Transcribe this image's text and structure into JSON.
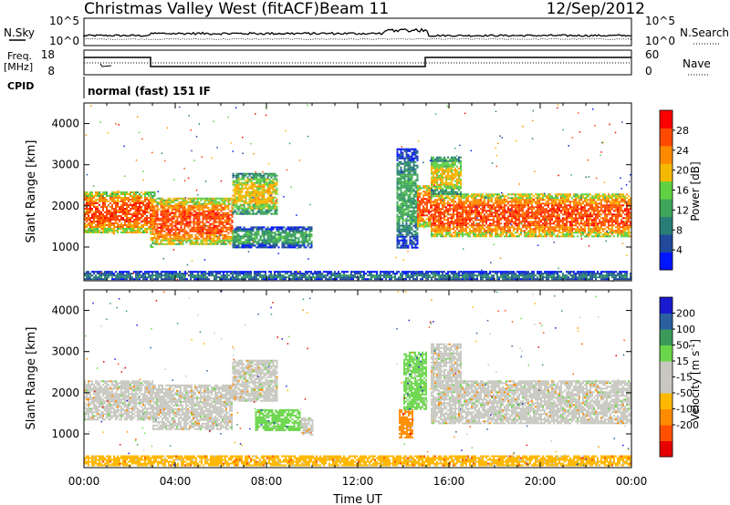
{
  "header": {
    "station": "Christmas Valley West (fitACF)",
    "beam": "Beam 11",
    "date": "12/Sep/2012"
  },
  "noise_panel": {
    "left_label": "N.Sky",
    "right_label": "N.Search",
    "left_ticks": [
      "10^5",
      "10^0"
    ],
    "right_ticks": [
      "10^5",
      "10^0"
    ]
  },
  "freq_panel": {
    "left_label_1": "Freq.",
    "left_label_2": "[MHz]",
    "right_label": "Nave",
    "left_ticks": [
      "18",
      "8"
    ],
    "right_ticks": [
      "60",
      "0"
    ]
  },
  "cpid": {
    "label": "CPID",
    "value": "normal (fast) 151 IF"
  },
  "colors": {
    "power": [
      "#0015ff",
      "#21499c",
      "#287e77",
      "#3ea55a",
      "#60d142",
      "#f5b800",
      "#ff8a00",
      "#ff4a00",
      "#ff0000"
    ],
    "velocity": [
      "#e60000",
      "#ff5000",
      "#ff8c00",
      "#ffb800",
      "#c8c8c0",
      "#c8c8c0",
      "#6ad64a",
      "#3b9a5a",
      "#2a5fa0",
      "#1a1ad0"
    ]
  },
  "chart_data": [
    {
      "type": "heatmap",
      "name": "power",
      "ylabel": "Slant Range [km]",
      "yticks": [
        "1000",
        "2000",
        "3000",
        "4000"
      ],
      "ylim": [
        180,
        4500
      ],
      "colorbar_label": "Power [dB]",
      "colorbar_ticks": [
        "4",
        "8",
        "12",
        "16",
        "20",
        "24",
        "28"
      ],
      "colorbar_range": [
        0,
        32
      ],
      "bands": [
        {
          "t0": 0.0,
          "t1": 2.9,
          "r0": 1350,
          "r1": 2350,
          "level": 7
        },
        {
          "t0": 2.9,
          "t1": 3.1,
          "r0": 1000,
          "r1": 2350,
          "level": 6
        },
        {
          "t0": 3.1,
          "t1": 6.5,
          "r0": 1050,
          "r1": 2200,
          "level": 7
        },
        {
          "t0": 6.5,
          "t1": 8.5,
          "r0": 1800,
          "r1": 2800,
          "level": 5
        },
        {
          "t0": 6.5,
          "t1": 10.0,
          "r0": 1000,
          "r1": 1500,
          "level": 3
        },
        {
          "t0": 13.7,
          "t1": 14.6,
          "r0": 1000,
          "r1": 3400,
          "level": 3
        },
        {
          "t0": 14.6,
          "t1": 15.2,
          "r0": 1500,
          "r1": 2500,
          "level": 7
        },
        {
          "t0": 15.2,
          "t1": 24.0,
          "r0": 1250,
          "r1": 2300,
          "level": 7
        },
        {
          "t0": 15.2,
          "t1": 16.5,
          "r0": 2300,
          "r1": 3200,
          "level": 5
        },
        {
          "t0": 0.0,
          "t1": 24.0,
          "r0": 200,
          "r1": 420,
          "level": 2
        }
      ]
    },
    {
      "type": "heatmap",
      "name": "velocity",
      "ylabel": "Slant Range [km]",
      "xlabel": "Time UT",
      "xticks": [
        "00:00",
        "04:00",
        "08:00",
        "12:00",
        "16:00",
        "20:00",
        "00:00"
      ],
      "xlim": [
        0,
        24
      ],
      "yticks": [
        "1000",
        "2000",
        "3000",
        "4000"
      ],
      "ylim": [
        180,
        4500
      ],
      "colorbar_label": "Velocity [m s",
      "colorbar_unit_exp": "-1",
      "colorbar_ticks": [
        "200",
        "100",
        "50",
        "15",
        "-15",
        "-50",
        "-100",
        "-200"
      ],
      "bands": [
        {
          "t0": 0.0,
          "t1": 3.0,
          "r0": 1350,
          "r1": 2300,
          "level": 4
        },
        {
          "t0": 3.0,
          "t1": 6.5,
          "r0": 1100,
          "r1": 2200,
          "level": 4
        },
        {
          "t0": 6.5,
          "t1": 8.5,
          "r0": 1800,
          "r1": 2800,
          "level": 4
        },
        {
          "t0": 7.5,
          "t1": 9.5,
          "r0": 1100,
          "r1": 1600,
          "level": 6
        },
        {
          "t0": 9.5,
          "t1": 10.0,
          "r0": 1000,
          "r1": 1400,
          "level": 4
        },
        {
          "t0": 13.8,
          "t1": 14.4,
          "r0": 900,
          "r1": 1600,
          "level": 2
        },
        {
          "t0": 14.0,
          "t1": 15.0,
          "r0": 1600,
          "r1": 3000,
          "level": 6
        },
        {
          "t0": 15.2,
          "t1": 24.0,
          "r0": 1250,
          "r1": 2300,
          "level": 4
        },
        {
          "t0": 15.2,
          "t1": 16.5,
          "r0": 2300,
          "r1": 3200,
          "level": 4
        },
        {
          "t0": 0.0,
          "t1": 24.0,
          "r0": 220,
          "r1": 480,
          "level": 3
        }
      ]
    }
  ]
}
